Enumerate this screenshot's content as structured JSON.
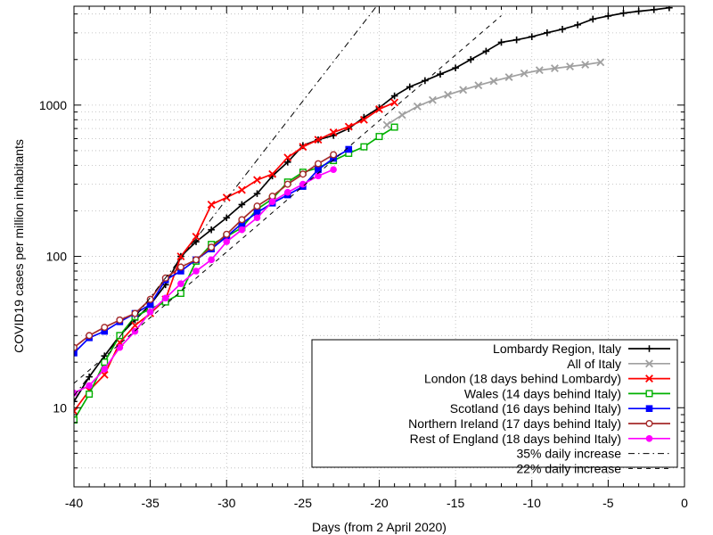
{
  "chart_data": {
    "type": "line",
    "xlabel": "Days (from 2 April 2020)",
    "ylabel": "COVID19 cases per million inhabitants",
    "xlim": [
      -40,
      0
    ],
    "ylim": [
      3,
      4500
    ],
    "yscale": "log",
    "x_ticks": [
      -40,
      -35,
      -30,
      -25,
      -20,
      -15,
      -10,
      -5,
      0
    ],
    "y_ticks": [
      {
        "value": 10,
        "label": "10"
      },
      {
        "value": 100,
        "label": "100"
      },
      {
        "value": 1000,
        "label": "1000"
      }
    ],
    "grid": true,
    "legend_position": "bottom-right",
    "series": [
      {
        "name": "Lombardy Region, Italy",
        "color": "#000000",
        "marker": "plus",
        "points": [
          [
            -40,
            11
          ],
          [
            -39,
            16
          ],
          [
            -38,
            22
          ],
          [
            -37,
            30
          ],
          [
            -36,
            38
          ],
          [
            -35,
            48
          ],
          [
            -34,
            65
          ],
          [
            -33,
            100
          ],
          [
            -32,
            125
          ],
          [
            -31,
            150
          ],
          [
            -30,
            180
          ],
          [
            -29,
            220
          ],
          [
            -28,
            260
          ],
          [
            -27,
            340
          ],
          [
            -26,
            420
          ],
          [
            -25,
            540
          ],
          [
            -24,
            590
          ],
          [
            -23,
            630
          ],
          [
            -22,
            700
          ],
          [
            -21,
            830
          ],
          [
            -20,
            960
          ],
          [
            -19,
            1150
          ],
          [
            -18,
            1320
          ],
          [
            -17,
            1450
          ],
          [
            -16,
            1600
          ],
          [
            -15,
            1760
          ],
          [
            -14,
            2000
          ],
          [
            -13,
            2270
          ],
          [
            -12,
            2600
          ],
          [
            -11,
            2700
          ],
          [
            -10,
            2830
          ],
          [
            -9,
            3010
          ],
          [
            -8,
            3170
          ],
          [
            -7,
            3390
          ],
          [
            -6,
            3700
          ],
          [
            -5,
            3880
          ],
          [
            -4,
            4050
          ],
          [
            -3,
            4170
          ],
          [
            -2,
            4270
          ],
          [
            -1,
            4400
          ]
        ]
      },
      {
        "name": "All of Italy",
        "color": "#a0a0a0",
        "marker": "x",
        "points": [
          [
            -19.5,
            740
          ],
          [
            -18.5,
            860
          ],
          [
            -17.5,
            980
          ],
          [
            -16.5,
            1080
          ],
          [
            -15.5,
            1170
          ],
          [
            -14.5,
            1260
          ],
          [
            -13.5,
            1350
          ],
          [
            -12.5,
            1440
          ],
          [
            -11.5,
            1530
          ],
          [
            -10.5,
            1620
          ],
          [
            -9.5,
            1700
          ],
          [
            -8.5,
            1750
          ],
          [
            -7.5,
            1800
          ],
          [
            -6.5,
            1850
          ],
          [
            -5.5,
            1920
          ]
        ]
      },
      {
        "name": "London (18 days behind Lombardy)",
        "color": "#ff0000",
        "marker": "x",
        "points": [
          [
            -40,
            9.5
          ],
          [
            -39,
            13
          ],
          [
            -38,
            16.5
          ],
          [
            -37,
            27
          ],
          [
            -36,
            35
          ],
          [
            -35,
            42
          ],
          [
            -34,
            52
          ],
          [
            -33,
            100
          ],
          [
            -32,
            135
          ],
          [
            -31,
            220
          ],
          [
            -30,
            245
          ],
          [
            -29,
            275
          ],
          [
            -28,
            320
          ],
          [
            -27,
            350
          ],
          [
            -26,
            450
          ],
          [
            -25,
            530
          ],
          [
            -24,
            590
          ],
          [
            -23,
            660
          ],
          [
            -22,
            720
          ],
          [
            -21,
            800
          ],
          [
            -20,
            940
          ],
          [
            -19,
            1040
          ]
        ]
      },
      {
        "name": "Wales (14 days behind Italy)",
        "color": "#00b000",
        "marker": "square-open",
        "points": [
          [
            -40,
            8.3
          ],
          [
            -39,
            12.3
          ],
          [
            -38,
            20
          ],
          [
            -37,
            30
          ],
          [
            -36,
            40
          ],
          [
            -35,
            45
          ],
          [
            -34,
            50
          ],
          [
            -33,
            57
          ],
          [
            -32,
            93
          ],
          [
            -31,
            120
          ],
          [
            -30,
            135
          ],
          [
            -29,
            155
          ],
          [
            -28,
            205
          ],
          [
            -27,
            240
          ],
          [
            -26,
            310
          ],
          [
            -25,
            360
          ],
          [
            -24,
            385
          ],
          [
            -23,
            430
          ],
          [
            -22,
            480
          ],
          [
            -21,
            530
          ],
          [
            -20,
            620
          ],
          [
            -19,
            715
          ]
        ]
      },
      {
        "name": "Scotland (16 days behind Italy)",
        "color": "#0000ff",
        "marker": "square",
        "points": [
          [
            -40,
            23
          ],
          [
            -39,
            29
          ],
          [
            -38,
            32
          ],
          [
            -37,
            37
          ],
          [
            -36,
            42
          ],
          [
            -35,
            48
          ],
          [
            -34,
            70
          ],
          [
            -33,
            80
          ],
          [
            -32,
            95
          ],
          [
            -31,
            112
          ],
          [
            -30,
            135
          ],
          [
            -29,
            165
          ],
          [
            -28,
            195
          ],
          [
            -27,
            225
          ],
          [
            -26,
            255
          ],
          [
            -25,
            290
          ],
          [
            -24,
            375
          ],
          [
            -23,
            445
          ],
          [
            -22,
            510
          ]
        ]
      },
      {
        "name": "Northern Ireland (17 days behind Italy)",
        "color": "#a52a2a",
        "marker": "circle-open",
        "points": [
          [
            -40,
            25
          ],
          [
            -39,
            30
          ],
          [
            -38,
            34
          ],
          [
            -37,
            38
          ],
          [
            -36,
            42
          ],
          [
            -35,
            52
          ],
          [
            -34,
            72
          ],
          [
            -33,
            85
          ],
          [
            -32,
            95
          ],
          [
            -31,
            115
          ],
          [
            -30,
            140
          ],
          [
            -29,
            175
          ],
          [
            -28,
            215
          ],
          [
            -27,
            250
          ],
          [
            -26,
            300
          ],
          [
            -25,
            350
          ],
          [
            -24,
            410
          ],
          [
            -23,
            470
          ]
        ]
      },
      {
        "name": "Rest of England (18 days behind Italy)",
        "color": "#ff00ff",
        "marker": "circle",
        "points": [
          [
            -40,
            12.5
          ],
          [
            -39,
            14
          ],
          [
            -38,
            18
          ],
          [
            -37,
            25
          ],
          [
            -36,
            32
          ],
          [
            -35,
            43
          ],
          [
            -34,
            53
          ],
          [
            -33,
            66
          ],
          [
            -32,
            80
          ],
          [
            -31,
            95
          ],
          [
            -30,
            125
          ],
          [
            -29,
            150
          ],
          [
            -28,
            180
          ],
          [
            -27,
            230
          ],
          [
            -26,
            265
          ],
          [
            -25,
            300
          ],
          [
            -24,
            340
          ],
          [
            -23,
            375
          ]
        ]
      },
      {
        "name": "35% daily increase",
        "color": "#000000",
        "style": "dash-dot",
        "points": [
          [
            -40,
            12
          ],
          [
            -19,
            6400
          ]
        ]
      },
      {
        "name": "22% daily increase",
        "color": "#000000",
        "style": "dash",
        "points": [
          [
            -40,
            14.5
          ],
          [
            -12,
            3900
          ]
        ]
      }
    ]
  }
}
